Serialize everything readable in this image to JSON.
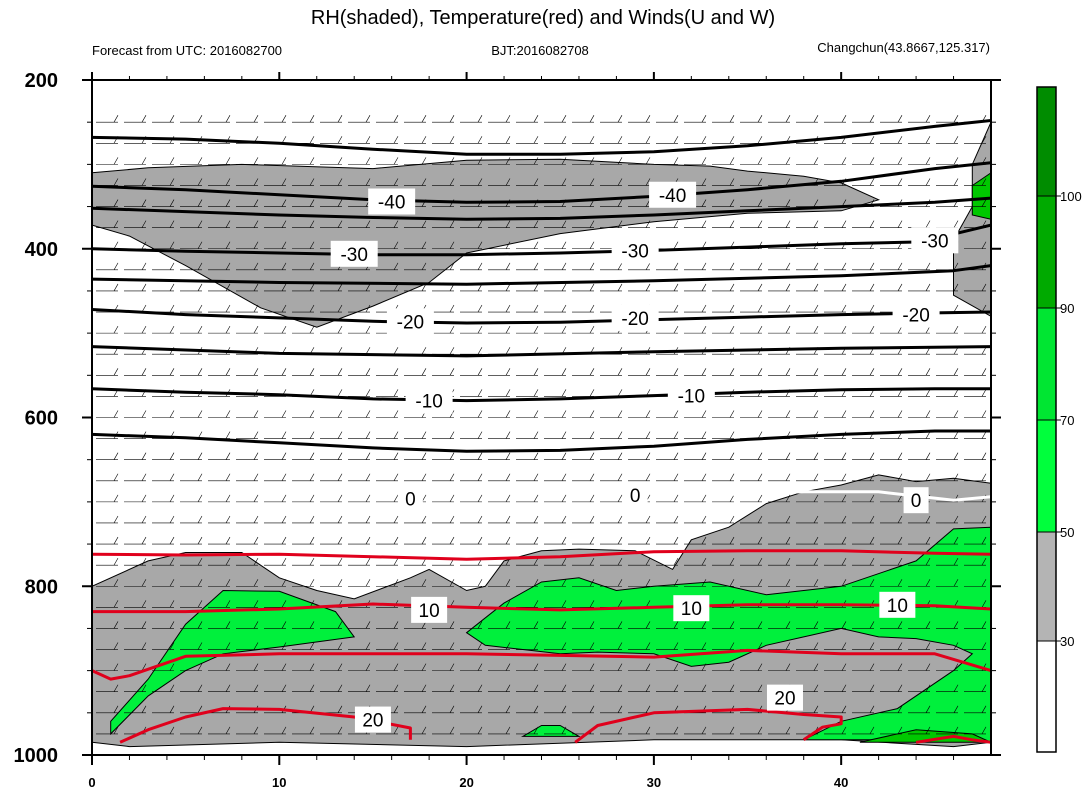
{
  "chart_data": {
    "type": "contour",
    "title": "RH(shaded), Temperature(red) and Winds(U and W)",
    "subtitle_left": "Forecast from UTC: 2016082700",
    "subtitle_center": "BJT:2016082708",
    "subtitle_right": "Changchun(43.8667,125.317)",
    "x_ticks": [
      "0",
      "10",
      "20",
      "30",
      "40"
    ],
    "xlim": [
      0,
      48
    ],
    "y_ticks": [
      "200",
      "400",
      "600",
      "800",
      "1000"
    ],
    "ylim": [
      1000,
      200
    ],
    "colorbar": {
      "labels": [
        "30",
        "50",
        "70",
        "90",
        "100"
      ],
      "colors": [
        "#ffffff",
        "#b4b4b4",
        "#00ff3c",
        "#00c800",
        "#008c00",
        "#005a00"
      ]
    },
    "colors": {
      "rh_30_50": "#a8a8a8",
      "rh_50_70": "#00f03c",
      "rh_70_90": "#00c800",
      "temperature_warm": "#e0001c",
      "temperature_cold": "#000000",
      "zero_isotherm_seg": "#ffffff",
      "wind_barb": "#000000"
    },
    "contour_labels": {
      "cold": [
        {
          "text": "-40",
          "x": 16,
          "p": 344
        },
        {
          "text": "-40",
          "x": 31,
          "p": 336
        },
        {
          "text": "-30",
          "x": 14,
          "p": 406
        },
        {
          "text": "-30",
          "x": 29,
          "p": 402
        },
        {
          "text": "-30",
          "x": 45,
          "p": 390
        },
        {
          "text": "-20",
          "x": 17,
          "p": 486
        },
        {
          "text": "-20",
          "x": 29,
          "p": 482
        },
        {
          "text": "-20",
          "x": 44,
          "p": 478
        },
        {
          "text": "-10",
          "x": 18,
          "p": 580
        },
        {
          "text": "-10",
          "x": 32,
          "p": 574
        },
        {
          "text": "0",
          "x": 17,
          "p": 696
        },
        {
          "text": "0",
          "x": 29,
          "p": 692
        },
        {
          "text": "0",
          "x": 44,
          "p": 698
        }
      ],
      "warm": [
        {
          "text": "10",
          "x": 18,
          "p": 828
        },
        {
          "text": "10",
          "x": 32,
          "p": 826
        },
        {
          "text": "10",
          "x": 43,
          "p": 822
        },
        {
          "text": "20",
          "x": 15,
          "p": 958
        },
        {
          "text": "20",
          "x": 37,
          "p": 932
        }
      ]
    },
    "isotherms": [
      {
        "level": -40,
        "color": "black",
        "points": [
          [
            0,
            268
          ],
          [
            5,
            270
          ],
          [
            10,
            275
          ],
          [
            15,
            282
          ],
          [
            20,
            288
          ],
          [
            25,
            288
          ],
          [
            30,
            285
          ],
          [
            35,
            278
          ],
          [
            40,
            268
          ],
          [
            45,
            255
          ],
          [
            48,
            248
          ]
        ]
      },
      {
        "level": -40,
        "color": "black",
        "points": [
          [
            0,
            326
          ],
          [
            5,
            330
          ],
          [
            10,
            336
          ],
          [
            15,
            342
          ],
          [
            20,
            345
          ],
          [
            25,
            344
          ],
          [
            30,
            338
          ],
          [
            35,
            330
          ],
          [
            40,
            320
          ],
          [
            45,
            305
          ],
          [
            48,
            298
          ]
        ]
      },
      {
        "level": -35,
        "color": "black",
        "points": [
          [
            0,
            352
          ],
          [
            5,
            356
          ],
          [
            10,
            360
          ],
          [
            15,
            363
          ],
          [
            20,
            365
          ],
          [
            25,
            364
          ],
          [
            30,
            360
          ],
          [
            35,
            355
          ],
          [
            40,
            350
          ],
          [
            45,
            345
          ],
          [
            48,
            340
          ]
        ]
      },
      {
        "level": -30,
        "color": "black",
        "points": [
          [
            0,
            400
          ],
          [
            5,
            403
          ],
          [
            10,
            405
          ],
          [
            15,
            407
          ],
          [
            20,
            407
          ],
          [
            25,
            405
          ],
          [
            30,
            402
          ],
          [
            35,
            398
          ],
          [
            40,
            394
          ],
          [
            44,
            392
          ],
          [
            45,
            388
          ],
          [
            48,
            372
          ]
        ]
      },
      {
        "level": -25,
        "color": "black",
        "points": [
          [
            0,
            436
          ],
          [
            10,
            440
          ],
          [
            20,
            442
          ],
          [
            30,
            438
          ],
          [
            40,
            432
          ],
          [
            46,
            426
          ],
          [
            48,
            420
          ]
        ]
      },
      {
        "level": -20,
        "color": "black",
        "points": [
          [
            0,
            472
          ],
          [
            5,
            478
          ],
          [
            10,
            482
          ],
          [
            15,
            486
          ],
          [
            20,
            488
          ],
          [
            25,
            487
          ],
          [
            30,
            484
          ],
          [
            35,
            481
          ],
          [
            40,
            478
          ],
          [
            45,
            476
          ],
          [
            48,
            475
          ]
        ]
      },
      {
        "level": -15,
        "color": "black",
        "points": [
          [
            0,
            516
          ],
          [
            10,
            524
          ],
          [
            20,
            527
          ],
          [
            30,
            522
          ],
          [
            40,
            518
          ],
          [
            48,
            516
          ]
        ]
      },
      {
        "level": -10,
        "color": "black",
        "points": [
          [
            0,
            566
          ],
          [
            5,
            570
          ],
          [
            10,
            573
          ],
          [
            15,
            578
          ],
          [
            20,
            580
          ],
          [
            25,
            578
          ],
          [
            30,
            574
          ],
          [
            35,
            570
          ],
          [
            40,
            567
          ],
          [
            45,
            566
          ],
          [
            48,
            566
          ]
        ]
      },
      {
        "level": -5,
        "color": "black",
        "points": [
          [
            0,
            620
          ],
          [
            5,
            624
          ],
          [
            10,
            630
          ],
          [
            15,
            636
          ],
          [
            20,
            640
          ],
          [
            25,
            639
          ],
          [
            30,
            634
          ],
          [
            35,
            626
          ],
          [
            40,
            620
          ],
          [
            45,
            616
          ],
          [
            48,
            616
          ]
        ]
      },
      {
        "level": 5,
        "color": "red",
        "points": [
          [
            0,
            762
          ],
          [
            5,
            763
          ],
          [
            10,
            762
          ],
          [
            15,
            765
          ],
          [
            20,
            768
          ],
          [
            25,
            765
          ],
          [
            30,
            759
          ],
          [
            35,
            758
          ],
          [
            40,
            758
          ],
          [
            45,
            761
          ],
          [
            48,
            762
          ]
        ]
      },
      {
        "level": 10,
        "color": "red",
        "points": [
          [
            0,
            830
          ],
          [
            5,
            830
          ],
          [
            10,
            827
          ],
          [
            15,
            821
          ],
          [
            20,
            825
          ],
          [
            25,
            828
          ],
          [
            30,
            825
          ],
          [
            35,
            822
          ],
          [
            40,
            822
          ],
          [
            45,
            823
          ],
          [
            48,
            827
          ]
        ]
      },
      {
        "level": 15,
        "color": "red",
        "points": [
          [
            0,
            900
          ],
          [
            1,
            910
          ],
          [
            2,
            906
          ],
          [
            5,
            883
          ],
          [
            10,
            880
          ],
          [
            15,
            880
          ],
          [
            20,
            880
          ],
          [
            25,
            882
          ],
          [
            30,
            884
          ],
          [
            35,
            876
          ],
          [
            40,
            880
          ],
          [
            45,
            880
          ],
          [
            48,
            900
          ]
        ]
      },
      {
        "level": 20,
        "color": "red",
        "points": [
          [
            1.5,
            985
          ],
          [
            3,
            970
          ],
          [
            5,
            955
          ],
          [
            7,
            945
          ],
          [
            10,
            946
          ],
          [
            14,
            955
          ],
          [
            17,
            968
          ],
          [
            17,
            982
          ]
        ]
      },
      {
        "level": 20,
        "color": "red",
        "points": [
          [
            25.8,
            985
          ],
          [
            27,
            965
          ],
          [
            30,
            950
          ],
          [
            35,
            946
          ],
          [
            38,
            952
          ],
          [
            40,
            955
          ],
          [
            40,
            963
          ],
          [
            39,
            967
          ],
          [
            38,
            982
          ]
        ]
      },
      {
        "level": 25,
        "color": "red",
        "points": [
          [
            44,
            985
          ],
          [
            46,
            978
          ],
          [
            47,
            982
          ],
          [
            48,
            985
          ]
        ]
      }
    ],
    "zero_isotherm_white_segment": [
      [
        33,
        692
      ],
      [
        38,
        688
      ],
      [
        42,
        688
      ],
      [
        46,
        698
      ],
      [
        48,
        694
      ]
    ],
    "gray_regions": [
      [
        [
          0,
          310
        ],
        [
          3,
          304
        ],
        [
          8,
          300
        ],
        [
          15,
          305
        ],
        [
          20,
          295
        ],
        [
          25,
          294
        ],
        [
          30,
          300
        ],
        [
          33,
          302
        ],
        [
          35,
          308
        ],
        [
          38,
          314
        ],
        [
          40,
          322
        ],
        [
          42,
          342
        ],
        [
          40,
          355
        ],
        [
          35,
          358
        ],
        [
          30,
          368
        ],
        [
          25,
          382
        ],
        [
          20,
          405
        ],
        [
          18,
          440
        ],
        [
          15,
          468
        ],
        [
          12,
          493
        ],
        [
          9,
          470
        ],
        [
          5,
          420
        ],
        [
          2,
          385
        ],
        [
          0,
          372
        ]
      ],
      [
        [
          47,
          300
        ],
        [
          48,
          250
        ],
        [
          48,
          480
        ],
        [
          46,
          455
        ],
        [
          46,
          390
        ],
        [
          47,
          350
        ]
      ],
      [
        [
          0,
          800
        ],
        [
          3,
          770
        ],
        [
          5,
          760
        ],
        [
          8,
          760
        ],
        [
          10,
          790
        ],
        [
          12,
          805
        ],
        [
          14,
          815
        ],
        [
          17,
          790
        ],
        [
          18,
          780
        ],
        [
          20,
          805
        ],
        [
          21,
          800
        ],
        [
          22,
          770
        ],
        [
          24,
          758
        ],
        [
          26,
          756
        ],
        [
          29,
          758
        ],
        [
          31,
          780
        ],
        [
          32,
          745
        ],
        [
          34,
          730
        ],
        [
          36,
          702
        ],
        [
          38,
          688
        ],
        [
          40,
          680
        ],
        [
          42,
          668
        ],
        [
          44,
          676
        ],
        [
          46,
          672
        ],
        [
          48,
          678
        ],
        [
          48,
          985
        ],
        [
          46,
          990
        ],
        [
          40,
          982
        ],
        [
          30,
          982
        ],
        [
          20,
          990
        ],
        [
          10,
          985
        ],
        [
          2,
          990
        ],
        [
          0,
          985
        ]
      ]
    ],
    "green_regions": [
      [
        [
          1,
          960
        ],
        [
          3,
          910
        ],
        [
          5,
          845
        ],
        [
          7,
          805
        ],
        [
          10,
          806
        ],
        [
          13,
          830
        ],
        [
          14,
          860
        ],
        [
          10,
          872
        ],
        [
          7,
          880
        ],
        [
          5,
          900
        ],
        [
          3,
          930
        ],
        [
          1,
          975
        ]
      ],
      [
        [
          20,
          855
        ],
        [
          22,
          820
        ],
        [
          24,
          795
        ],
        [
          26,
          790
        ],
        [
          28,
          805
        ],
        [
          30,
          800
        ],
        [
          33,
          795
        ],
        [
          36,
          810
        ],
        [
          40,
          800
        ],
        [
          44,
          770
        ],
        [
          46,
          732
        ],
        [
          48,
          730
        ],
        [
          48,
          985
        ],
        [
          46,
          978
        ],
        [
          43,
          982
        ],
        [
          40,
          982
        ],
        [
          38,
          982
        ],
        [
          40,
          960
        ],
        [
          43,
          945
        ],
        [
          46,
          900
        ],
        [
          47,
          880
        ],
        [
          46,
          870
        ],
        [
          44,
          862
        ],
        [
          42,
          860
        ],
        [
          40,
          850
        ],
        [
          38,
          860
        ],
        [
          36,
          870
        ],
        [
          34,
          890
        ],
        [
          32,
          895
        ],
        [
          30,
          880
        ],
        [
          27,
          878
        ],
        [
          25,
          880
        ],
        [
          23,
          875
        ],
        [
          21,
          870
        ]
      ],
      [
        [
          23,
          978
        ],
        [
          24,
          965
        ],
        [
          25,
          965
        ],
        [
          26,
          978
        ]
      ]
    ],
    "dark_green_regions": [
      [
        [
          47,
          325
        ],
        [
          48,
          310
        ],
        [
          48,
          365
        ],
        [
          47,
          360
        ]
      ],
      [
        [
          41,
          985
        ],
        [
          44,
          970
        ],
        [
          47,
          975
        ],
        [
          48,
          985
        ]
      ]
    ]
  }
}
